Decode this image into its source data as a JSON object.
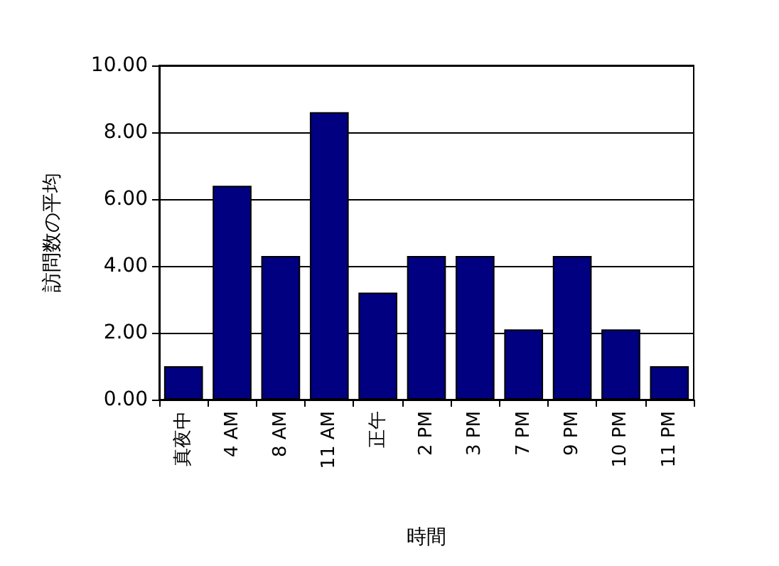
{
  "chart_data": {
    "type": "bar",
    "xlabel": "時間",
    "ylabel": "訪問数の平均",
    "categories": [
      "真夜中",
      "4 AM",
      "8 AM",
      "11 AM",
      "正午",
      "2 PM",
      "3 PM",
      "7 PM",
      "9 PM",
      "10 PM",
      "11 PM"
    ],
    "values": [
      1.0,
      6.4,
      4.3,
      8.6,
      3.2,
      4.3,
      4.3,
      2.1,
      4.3,
      2.1,
      1.0
    ],
    "color": "#000080",
    "ylim": [
      0,
      10
    ],
    "yticks": [
      {
        "value": 0,
        "label": "0.00"
      },
      {
        "value": 2,
        "label": "2.00"
      },
      {
        "value": 4,
        "label": "4.00"
      },
      {
        "value": 6,
        "label": "6.00"
      },
      {
        "value": 8,
        "label": "8.00"
      },
      {
        "value": 10,
        "label": "10.00"
      }
    ],
    "grid": "y"
  }
}
